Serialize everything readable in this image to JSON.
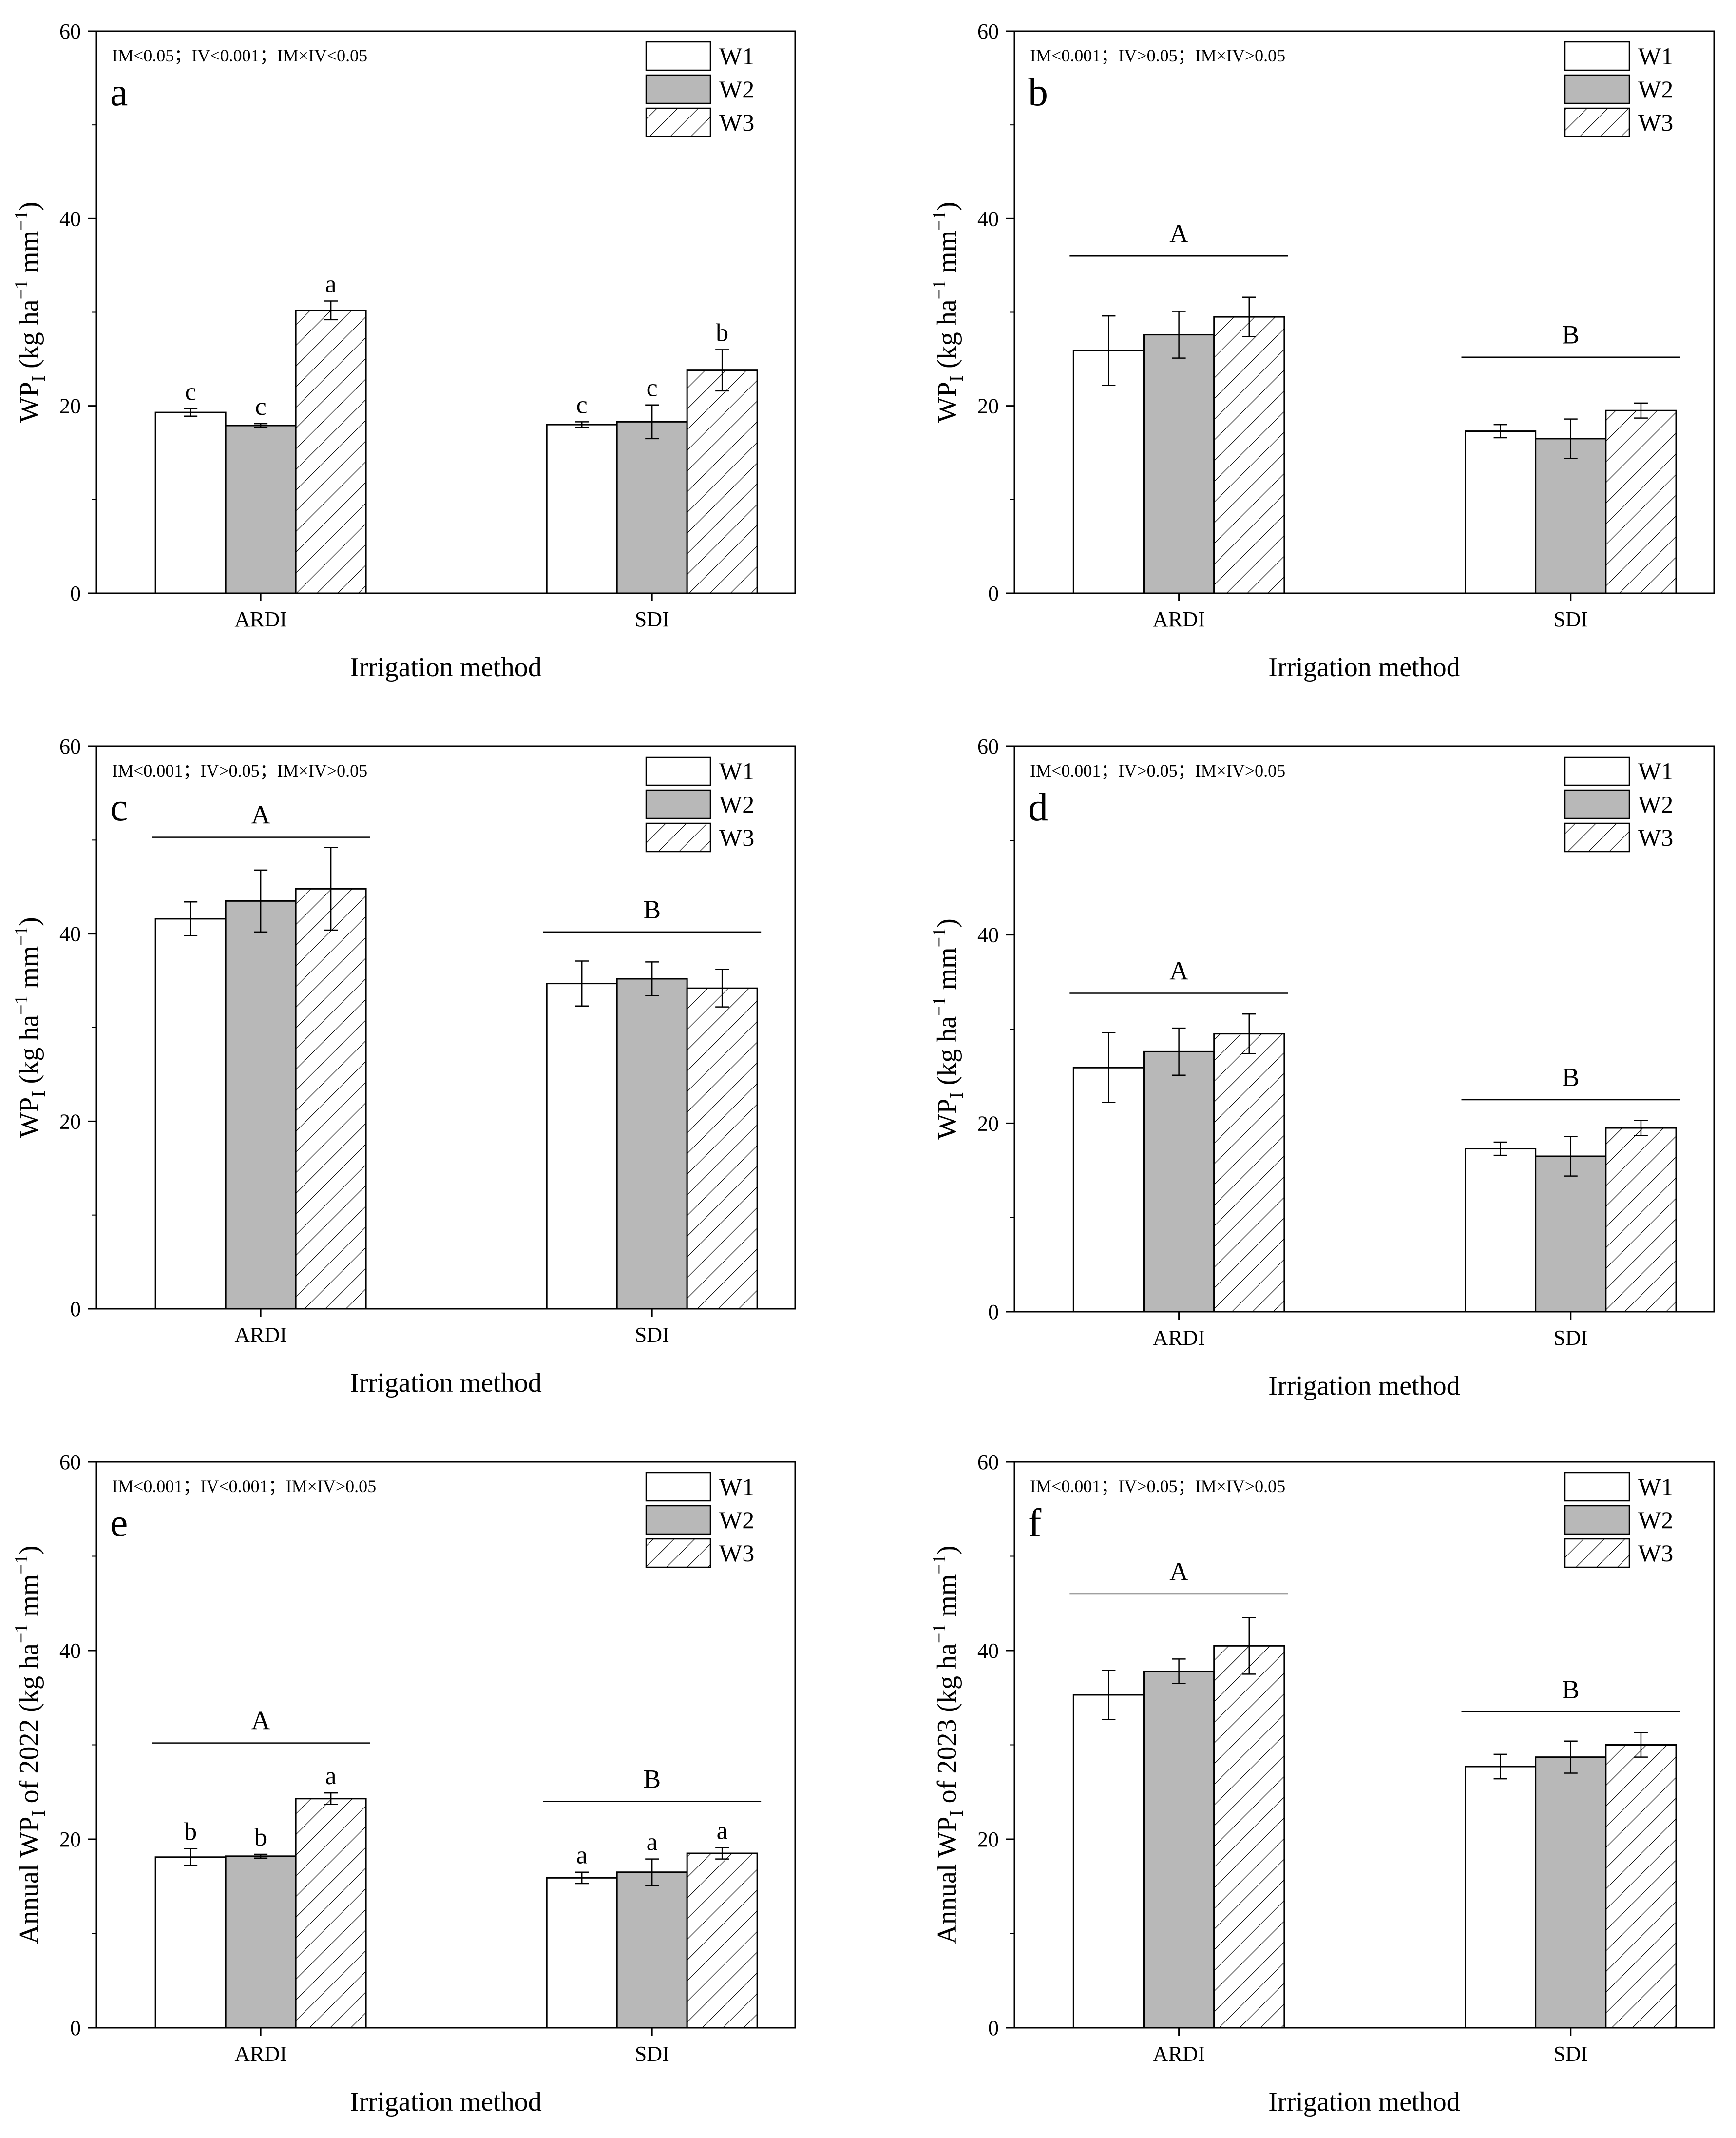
{
  "figure": {
    "xlabel": "Irrigation method",
    "legend": [
      {
        "name": "W1",
        "fill": "#ffffff"
      },
      {
        "name": "W2",
        "fill": "#b8b8b8"
      },
      {
        "name": "W3",
        "fill": "hatch"
      }
    ]
  },
  "chart_data": [
    {
      "type": "bar",
      "panel": "a",
      "stats": "IM<0.05；IV<0.001；IM×IV<0.05",
      "ylabel_main": "WP",
      "ylabel_sub": "I",
      "ylabel_unit": " (kg ha",
      "ylabel_exp": "−1",
      "ylabel_tail": " mm",
      "ylabel_exp2": "−1",
      "ylabel_close": ")",
      "ylim": [
        0,
        60
      ],
      "yticks": [
        0,
        20,
        40,
        60
      ],
      "categories": [
        "ARDI",
        "SDI"
      ],
      "series": [
        {
          "name": "W1",
          "values": [
            19.3,
            18.0
          ],
          "errors": [
            0.4,
            0.3
          ],
          "letters": [
            "c",
            "c"
          ]
        },
        {
          "name": "W2",
          "values": [
            17.9,
            18.3
          ],
          "errors": [
            0.2,
            1.8
          ],
          "letters": [
            "c",
            "c"
          ]
        },
        {
          "name": "W3",
          "values": [
            30.2,
            23.8
          ],
          "errors": [
            1.0,
            2.2
          ],
          "letters": [
            "a",
            "b"
          ]
        }
      ],
      "group_letters": []
    },
    {
      "type": "bar",
      "panel": "b",
      "stats": "IM<0.001；IV>0.05；IM×IV>0.05",
      "ylabel_main": "WP",
      "ylabel_sub": "I",
      "ylabel_unit": " (kg ha",
      "ylabel_exp": "−1",
      "ylabel_tail": " mm",
      "ylabel_exp2": "−1",
      "ylabel_close": ")",
      "ylim": [
        0,
        60
      ],
      "yticks": [
        0,
        20,
        40,
        60
      ],
      "categories": [
        "ARDI",
        "SDI"
      ],
      "series": [
        {
          "name": "W1",
          "values": [
            25.9,
            17.3
          ],
          "errors": [
            3.7,
            0.7
          ],
          "letters": []
        },
        {
          "name": "W2",
          "values": [
            27.6,
            16.5
          ],
          "errors": [
            2.5,
            2.1
          ],
          "letters": []
        },
        {
          "name": "W3",
          "values": [
            29.5,
            19.5
          ],
          "errors": [
            2.1,
            0.8
          ],
          "letters": []
        }
      ],
      "group_letters": [
        {
          "text": "A",
          "y": 36.0
        },
        {
          "text": "B",
          "y": 25.2
        }
      ]
    },
    {
      "type": "bar",
      "panel": "c",
      "stats": "IM<0.001；IV>0.05；IM×IV>0.05",
      "ylabel_main": "WP",
      "ylabel_sub": "I",
      "ylabel_unit": " (kg ha",
      "ylabel_exp": "−1",
      "ylabel_tail": " mm",
      "ylabel_exp2": "−1",
      "ylabel_close": ")",
      "ylim": [
        0,
        60
      ],
      "yticks": [
        0,
        20,
        40,
        60
      ],
      "categories": [
        "ARDI",
        "SDI"
      ],
      "series": [
        {
          "name": "W1",
          "values": [
            41.6,
            34.7
          ],
          "errors": [
            1.8,
            2.4
          ],
          "letters": []
        },
        {
          "name": "W2",
          "values": [
            43.5,
            35.2
          ],
          "errors": [
            3.3,
            1.8
          ],
          "letters": []
        },
        {
          "name": "W3",
          "values": [
            44.8,
            34.2
          ],
          "errors": [
            4.4,
            2.0
          ],
          "letters": []
        }
      ],
      "group_letters": [
        {
          "text": "A",
          "y": 50.3
        },
        {
          "text": "B",
          "y": 40.2
        }
      ]
    },
    {
      "type": "bar",
      "panel": "d",
      "stats": "IM<0.001；IV>0.05；IM×IV>0.05",
      "ylabel_main": "WP",
      "ylabel_sub": "I",
      "ylabel_unit": " (kg ha",
      "ylabel_exp": "−1",
      "ylabel_tail": " mm",
      "ylabel_exp2": "−1",
      "ylabel_close": ")",
      "ylim": [
        0,
        60
      ],
      "yticks": [
        0,
        20,
        40,
        60
      ],
      "categories": [
        "ARDI",
        "SDI"
      ],
      "series": [
        {
          "name": "W1",
          "values": [
            25.9,
            17.3
          ],
          "errors": [
            3.7,
            0.7
          ],
          "letters": []
        },
        {
          "name": "W2",
          "values": [
            27.6,
            16.5
          ],
          "errors": [
            2.5,
            2.1
          ],
          "letters": []
        },
        {
          "name": "W3",
          "values": [
            29.5,
            19.5
          ],
          "errors": [
            2.1,
            0.8
          ],
          "letters": []
        }
      ],
      "group_letters": [
        {
          "text": "A",
          "y": 33.8
        },
        {
          "text": "B",
          "y": 22.5
        }
      ]
    },
    {
      "type": "bar",
      "panel": "e",
      "stats": "IM<0.001；IV<0.001；IM×IV>0.05",
      "ylabel_main": "Annual WP",
      "ylabel_sub": "I",
      "ylabel_unit": " of 2022 (kg ha",
      "ylabel_exp": "−1",
      "ylabel_tail": " mm",
      "ylabel_exp2": "−1",
      "ylabel_close": ")",
      "ylim": [
        0,
        60
      ],
      "yticks": [
        0,
        20,
        40,
        60
      ],
      "categories": [
        "ARDI",
        "SDI"
      ],
      "series": [
        {
          "name": "W1",
          "values": [
            18.1,
            15.9
          ],
          "errors": [
            0.9,
            0.6
          ],
          "letters": [
            "b",
            "a"
          ]
        },
        {
          "name": "W2",
          "values": [
            18.2,
            16.5
          ],
          "errors": [
            0.2,
            1.4
          ],
          "letters": [
            "b",
            "a"
          ]
        },
        {
          "name": "W3",
          "values": [
            24.3,
            18.5
          ],
          "errors": [
            0.6,
            0.6
          ],
          "letters": [
            "a",
            "a"
          ]
        }
      ],
      "group_letters": [
        {
          "text": "A",
          "y": 30.2
        },
        {
          "text": "B",
          "y": 24.0
        }
      ]
    },
    {
      "type": "bar",
      "panel": "f",
      "stats": "IM<0.001；IV>0.05；IM×IV>0.05",
      "ylabel_main": "Annual WP",
      "ylabel_sub": "I",
      "ylabel_unit": " of 2023 (kg ha",
      "ylabel_exp": "−1",
      "ylabel_tail": " mm",
      "ylabel_exp2": "−1",
      "ylabel_close": ")",
      "ylim": [
        0,
        60
      ],
      "yticks": [
        0,
        20,
        40,
        60
      ],
      "categories": [
        "ARDI",
        "SDI"
      ],
      "series": [
        {
          "name": "W1",
          "values": [
            35.3,
            27.7
          ],
          "errors": [
            2.6,
            1.3
          ],
          "letters": []
        },
        {
          "name": "W2",
          "values": [
            37.8,
            28.7
          ],
          "errors": [
            1.3,
            1.7
          ],
          "letters": []
        },
        {
          "name": "W3",
          "values": [
            40.5,
            30.0
          ],
          "errors": [
            3.0,
            1.3
          ],
          "letters": []
        }
      ],
      "group_letters": [
        {
          "text": "A",
          "y": 46.0
        },
        {
          "text": "B",
          "y": 33.5
        }
      ]
    }
  ]
}
